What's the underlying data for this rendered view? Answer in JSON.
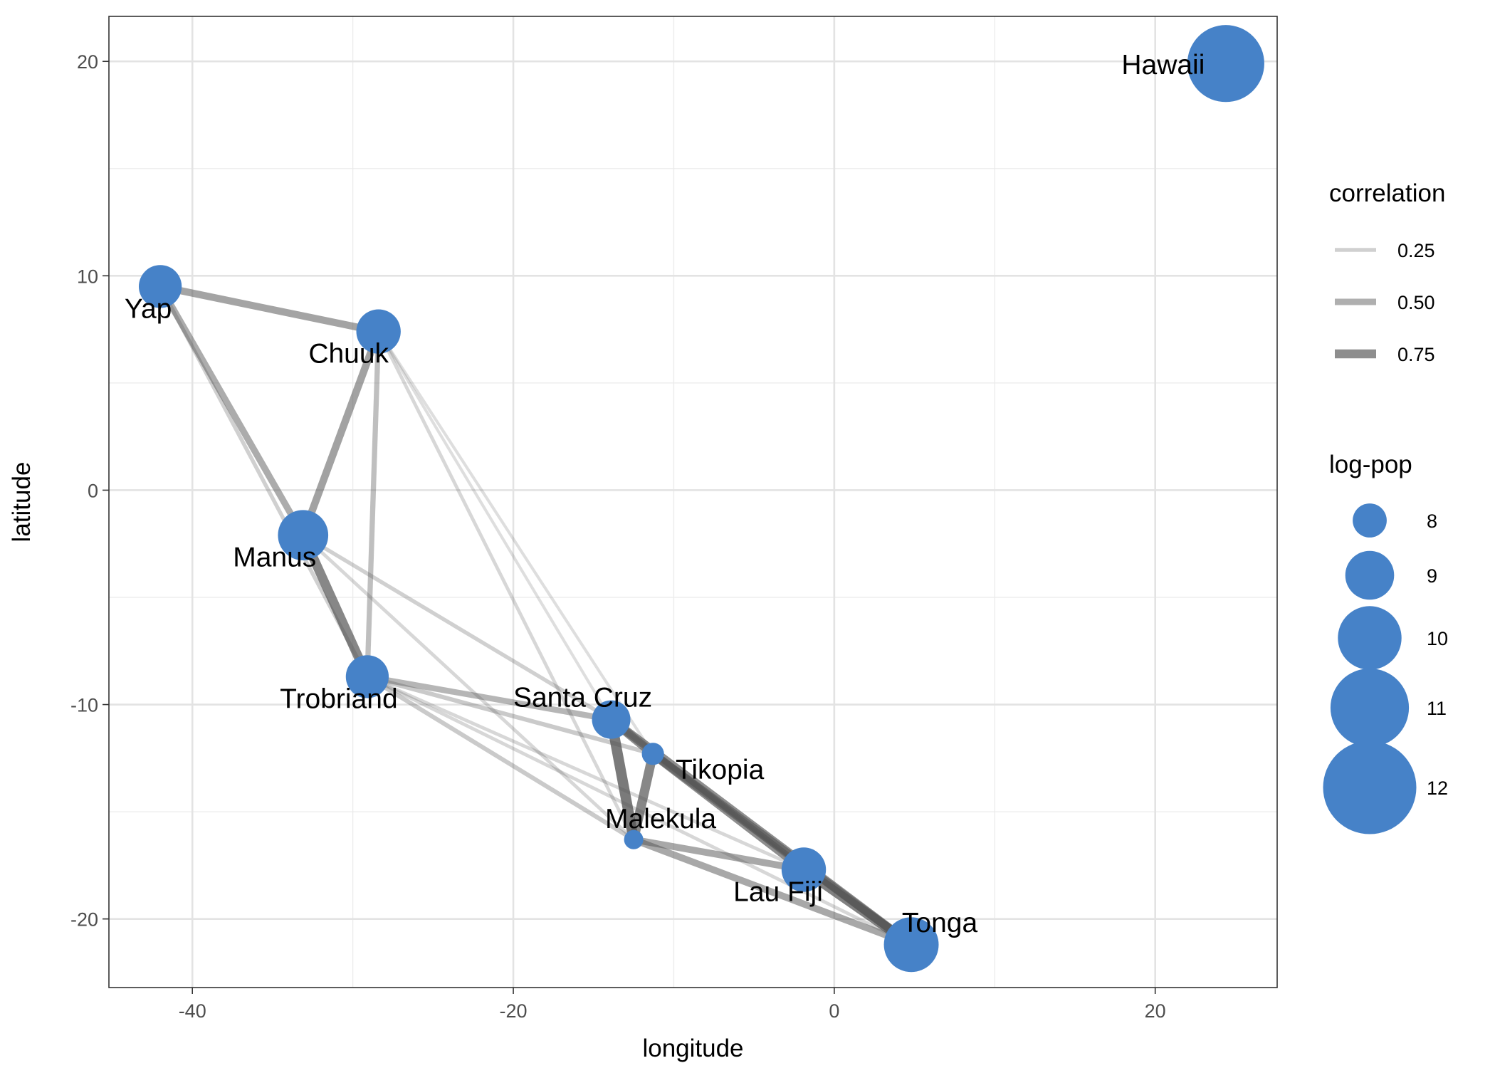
{
  "chart_data": {
    "type": "scatter",
    "xlabel": "longitude",
    "ylabel": "latitude",
    "xlim": [
      -45.2,
      27.6
    ],
    "ylim": [
      -23.2,
      22.1
    ],
    "x_ticks": [
      -40,
      -20,
      0,
      20
    ],
    "y_ticks": [
      -20,
      -10,
      0,
      10,
      20
    ],
    "grid": true,
    "point_color": "#4682c8",
    "edge_color": "#555555",
    "nodes": [
      {
        "name": "Malekula",
        "x": -12.5,
        "y": -16.3,
        "logpop": 7.0
      },
      {
        "name": "Tikopia",
        "x": -11.3,
        "y": -12.3,
        "logpop": 7.2
      },
      {
        "name": "Santa Cruz",
        "x": -13.9,
        "y": -10.7,
        "logpop": 8.3
      },
      {
        "name": "Yap",
        "x": -42.0,
        "y": 9.5,
        "logpop": 8.6
      },
      {
        "name": "Lau Fiji",
        "x": -1.9,
        "y": -17.7,
        "logpop": 8.7
      },
      {
        "name": "Trobriand",
        "x": -29.1,
        "y": -8.7,
        "logpop": 8.6
      },
      {
        "name": "Chuuk",
        "x": -28.4,
        "y": 7.4,
        "logpop": 8.7
      },
      {
        "name": "Manus",
        "x": -33.1,
        "y": -2.1,
        "logpop": 9.1
      },
      {
        "name": "Tonga",
        "x": 4.8,
        "y": -21.2,
        "logpop": 9.4
      },
      {
        "name": "Hawaii",
        "x": 24.4,
        "y": 19.9,
        "logpop": 10.9
      }
    ],
    "edges": [
      {
        "from": "Yap",
        "to": "Chuuk",
        "correlation": 0.58
      },
      {
        "from": "Yap",
        "to": "Manus",
        "correlation": 0.52
      },
      {
        "from": "Yap",
        "to": "Trobriand",
        "correlation": 0.25
      },
      {
        "from": "Chuuk",
        "to": "Manus",
        "correlation": 0.6
      },
      {
        "from": "Chuuk",
        "to": "Trobriand",
        "correlation": 0.38
      },
      {
        "from": "Chuuk",
        "to": "Santa Cruz",
        "correlation": 0.15
      },
      {
        "from": "Chuuk",
        "to": "Malekula",
        "correlation": 0.2
      },
      {
        "from": "Chuuk",
        "to": "Tikopia",
        "correlation": 0.15
      },
      {
        "from": "Manus",
        "to": "Trobriand",
        "correlation": 0.8
      },
      {
        "from": "Manus",
        "to": "Santa Cruz",
        "correlation": 0.25
      },
      {
        "from": "Manus",
        "to": "Malekula",
        "correlation": 0.2
      },
      {
        "from": "Trobriand",
        "to": "Santa Cruz",
        "correlation": 0.45
      },
      {
        "from": "Trobriand",
        "to": "Malekula",
        "correlation": 0.3
      },
      {
        "from": "Trobriand",
        "to": "Tikopia",
        "correlation": 0.3
      },
      {
        "from": "Trobriand",
        "to": "Lau Fiji",
        "correlation": 0.2
      },
      {
        "from": "Trobriand",
        "to": "Tonga",
        "correlation": 0.2
      },
      {
        "from": "Santa Cruz",
        "to": "Malekula",
        "correlation": 0.9
      },
      {
        "from": "Santa Cruz",
        "to": "Tikopia",
        "correlation": 0.75
      },
      {
        "from": "Santa Cruz",
        "to": "Tonga",
        "correlation": 0.75
      },
      {
        "from": "Santa Cruz",
        "to": "Lau Fiji",
        "correlation": 0.3
      },
      {
        "from": "Tikopia",
        "to": "Malekula",
        "correlation": 0.8
      },
      {
        "from": "Tikopia",
        "to": "Lau Fiji",
        "correlation": 0.75
      },
      {
        "from": "Tikopia",
        "to": "Tonga",
        "correlation": 0.7
      },
      {
        "from": "Malekula",
        "to": "Lau Fiji",
        "correlation": 0.55
      },
      {
        "from": "Malekula",
        "to": "Tonga",
        "correlation": 0.55
      },
      {
        "from": "Lau Fiji",
        "to": "Tonga",
        "correlation": 0.85
      }
    ],
    "legend": {
      "position": "right",
      "correlation": {
        "title": "correlation",
        "values": [
          0.25,
          0.5,
          0.75
        ],
        "labels": [
          "0.25",
          "0.50",
          "0.75"
        ]
      },
      "logpop": {
        "title": "log-pop",
        "values": [
          8,
          9,
          10,
          11,
          12
        ],
        "labels": [
          "8",
          "9",
          "10",
          "11",
          "12"
        ]
      }
    }
  }
}
